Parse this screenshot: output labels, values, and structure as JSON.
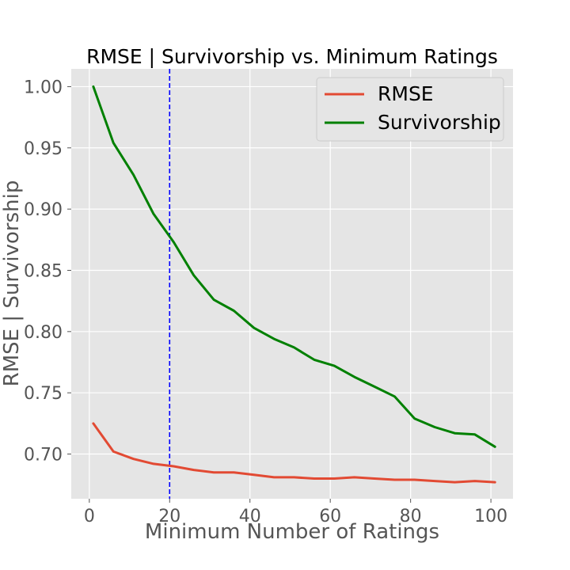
{
  "chart_data": {
    "type": "line",
    "title": "RMSE | Survivorship vs. Minimum Ratings",
    "xlabel": "Minimum Number of Ratings",
    "ylabel": "RMSE | Survivorship",
    "xlim": [
      -4.5,
      105.5
    ],
    "ylim": [
      0.6635,
      1.0145
    ],
    "xticks": [
      0,
      20,
      40,
      60,
      80,
      100
    ],
    "yticks": [
      0.7,
      0.75,
      0.8,
      0.85,
      0.9,
      0.95,
      1.0
    ],
    "xtick_labels": [
      "0",
      "20",
      "40",
      "60",
      "80",
      "100"
    ],
    "ytick_labels": [
      "0.70",
      "0.75",
      "0.80",
      "0.85",
      "0.90",
      "0.95",
      "1.00"
    ],
    "grid": true,
    "legend_position": "upper-right",
    "vline": {
      "x": 20,
      "color": "#0000ff",
      "style": "dashed"
    },
    "x": [
      1,
      6,
      11,
      16,
      21,
      26,
      31,
      36,
      41,
      46,
      51,
      56,
      61,
      66,
      71,
      76,
      81,
      86,
      91,
      96,
      101
    ],
    "series": [
      {
        "name": "RMSE",
        "color": "#e24a33",
        "values": [
          0.725,
          0.702,
          0.696,
          0.692,
          0.69,
          0.687,
          0.685,
          0.685,
          0.683,
          0.681,
          0.681,
          0.68,
          0.68,
          0.681,
          0.68,
          0.679,
          0.679,
          0.678,
          0.677,
          0.678,
          0.677
        ]
      },
      {
        "name": "Survivorship",
        "color": "#008000",
        "values": [
          1.0,
          0.954,
          0.928,
          0.896,
          0.873,
          0.846,
          0.826,
          0.817,
          0.803,
          0.794,
          0.787,
          0.777,
          0.772,
          0.763,
          0.755,
          0.747,
          0.729,
          0.722,
          0.717,
          0.716,
          0.706
        ]
      }
    ]
  }
}
